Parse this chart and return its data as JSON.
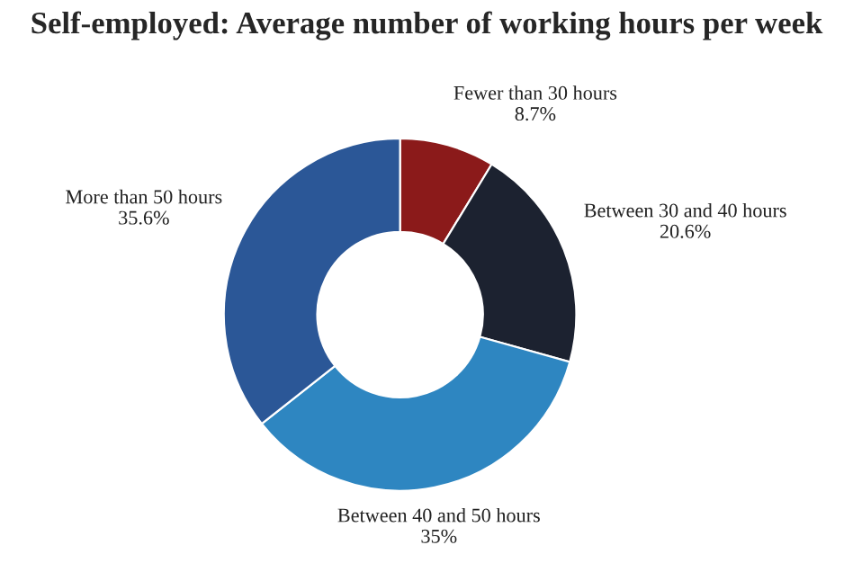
{
  "chart_data": {
    "type": "donut",
    "title": "Self-employed: Average number of working hours per week",
    "categories": [
      "Fewer than 30 hours",
      "Between 30 and 40 hours",
      "Between 40 and 50 hours",
      "More than 50 hours"
    ],
    "values": [
      8.7,
      20.6,
      35,
      35.6
    ],
    "value_labels": [
      "8.7%",
      "20.6%",
      "35%",
      "35.6%"
    ],
    "colors": [
      "#8b1a1a",
      "#1c2230",
      "#2e86c1",
      "#2b5797"
    ]
  }
}
